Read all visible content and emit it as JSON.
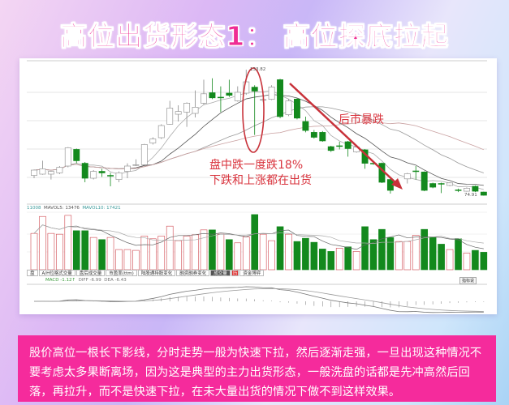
{
  "title": "高位出货形态1： 高位探底拉起",
  "annotations": {
    "high_label": "133.82",
    "low_label": "74.91",
    "note_line1": "盘中跌一度跌18%",
    "note_line2": "下跌和上涨都在出货",
    "crash_label": "后市暴跌"
  },
  "volume_legend": {
    "vol": "11008",
    "mavol5": "MAVOL5: 13476",
    "mavol10": "MAVOL10: 17421"
  },
  "tabs": [
    "盘",
    "A/H位格式交量",
    "盘后成交量",
    "市盈率(ttm)",
    "陆股通持股变化",
    "融资融券变化",
    "成交量",
    "历",
    "资金博弈"
  ],
  "active_tab": "成交量",
  "macd_legend": {
    "macd": "MACD -1.12↑",
    "diff": "DIFF -6.99",
    "dea": "DEA -6.43"
  },
  "indicator_button": "指标说",
  "description": "股价高位一根长下影线，分时走势一般为快速下拉，然后逐渐走强，一旦出现这种情况不要考虑太多果断离场，因为这是典型的主力出货形态，一般洗盘的话都是先冲高然后回落，再拉升，而不是快速下拉，在未大量出货的情况下做不到这样效果。",
  "colors": {
    "up": "#d0484f",
    "down": "#13891d",
    "title": "#ef2c93",
    "annotation": "#d9343e",
    "box": "#f52b9c"
  },
  "chart_data": {
    "type": "candlestick",
    "price_marks": {
      "high": 133.82,
      "low": 74.91
    },
    "candles": [
      [
        84.2,
        87.0,
        82.9,
        86.7
      ],
      [
        84.8,
        91.1,
        84.5,
        87.3
      ],
      [
        84.8,
        86.4,
        82.3,
        86.1
      ],
      [
        85.4,
        88.6,
        84.8,
        88.0
      ],
      [
        88.6,
        97.5,
        88.0,
        97.2
      ],
      [
        96.4,
        96.8,
        89.9,
        91.1
      ],
      [
        89.9,
        90.5,
        81.0,
        82.9
      ],
      [
        82.9,
        86.7,
        82.3,
        86.1
      ],
      [
        86.1,
        87.3,
        83.5,
        85.4
      ],
      [
        84.2,
        85.4,
        79.1,
        84.0
      ],
      [
        82.3,
        86.1,
        81.0,
        85.4
      ],
      [
        86.1,
        89.9,
        82.9,
        88.6
      ],
      [
        89.0,
        91.8,
        88.6,
        89.2
      ],
      [
        89.2,
        99.0,
        89.0,
        98.7
      ],
      [
        99.4,
        102.1,
        98.7,
        101.3
      ],
      [
        101.9,
        108.2,
        101.3,
        107.6
      ],
      [
        108.2,
        119.2,
        108.0,
        115.8
      ],
      [
        112.9,
        117.1,
        109.5,
        114.2
      ],
      [
        113.9,
        118.5,
        107.0,
        118.1
      ],
      [
        113.3,
        124.1,
        111.4,
        116.2
      ],
      [
        118.1,
        129.1,
        117.5,
        122.5
      ],
      [
        123.0,
        129.8,
        120.0,
        120.6
      ],
      [
        120.9,
        126.0,
        113.9,
        120.7
      ],
      [
        122.8,
        129.1,
        121.0,
        121.8
      ],
      [
        119.2,
        126.0,
        118.8,
        123.2
      ],
      [
        122.8,
        133.82,
        122.0,
        128.1
      ],
      [
        125.6,
        126.5,
        103.2,
        123.8
      ],
      [
        119.6,
        120.5,
        118.5,
        119.8
      ],
      [
        119.9,
        126.5,
        119.5,
        125.7
      ],
      [
        129.1,
        129.5,
        111.0,
        111.8
      ],
      [
        112.7,
        120.0,
        112.0,
        119.2
      ],
      [
        120.0,
        120.4,
        110.5,
        111.1
      ],
      [
        109.5,
        111.8,
        104.4,
        105.3
      ],
      [
        104.4,
        105.5,
        101.5,
        102.1
      ],
      [
        104.4,
        105.0,
        100.0,
        100.4
      ],
      [
        97.7,
        98.1,
        95.2,
        95.9
      ],
      [
        98.1,
        100.0,
        96.4,
        98.0
      ],
      [
        100.0,
        100.4,
        93.0,
        96.8
      ],
      [
        95.2,
        97.9,
        94.8,
        97.5
      ],
      [
        96.2,
        96.6,
        87.3,
        89.9
      ],
      [
        89.9,
        90.4,
        89.2,
        89.8
      ],
      [
        89.9,
        90.2,
        80.6,
        81.0
      ],
      [
        82.3,
        82.6,
        75.7,
        77.2
      ],
      null,
      [
        82.6,
        85.4,
        80.4,
        85.0
      ],
      [
        86.3,
        88.6,
        82.3,
        86.2
      ],
      [
        85.8,
        86.1,
        76.8,
        77.2
      ],
      [
        80.4,
        80.8,
        78.2,
        78.7
      ],
      [
        80.4,
        80.8,
        75.9,
        80.3
      ],
      [
        79.5,
        81.0,
        79.1,
        80.7
      ],
      [
        77.4,
        78.0,
        76.4,
        77.3
      ],
      [
        76.8,
        78.6,
        76.6,
        78.2
      ],
      [
        79.1,
        79.5,
        76.4,
        76.8
      ],
      [
        76.4,
        76.6,
        74.7,
        74.91
      ]
    ],
    "candle_fields": [
      "open",
      "high",
      "low",
      "close"
    ],
    "volume": [
      {
        "v": 13500,
        "up": true
      },
      {
        "v": 19800,
        "up": true
      },
      {
        "v": 13500,
        "up": true
      },
      {
        "v": 13200,
        "up": true
      },
      {
        "v": 20200,
        "up": true
      },
      {
        "v": 14500,
        "up": false
      },
      {
        "v": 14500,
        "up": false
      },
      {
        "v": 12000,
        "up": true
      },
      {
        "v": 11200,
        "up": false
      },
      {
        "v": 12000,
        "up": true
      },
      {
        "v": 7500,
        "up": true
      },
      {
        "v": 7500,
        "up": true
      },
      {
        "v": 7200,
        "up": true
      },
      {
        "v": 12500,
        "up": true
      },
      {
        "v": 11500,
        "up": true
      },
      {
        "v": 12500,
        "up": true
      },
      {
        "v": 16200,
        "up": true
      },
      {
        "v": 10800,
        "up": true
      },
      {
        "v": 12500,
        "up": true
      },
      {
        "v": 13000,
        "up": true
      },
      {
        "v": 14800,
        "up": true
      },
      {
        "v": 14800,
        "up": false
      },
      {
        "v": 13200,
        "up": true
      },
      {
        "v": 11200,
        "up": false
      },
      {
        "v": 10000,
        "up": true
      },
      {
        "v": 12200,
        "up": true
      },
      {
        "v": 20500,
        "up": false
      },
      {
        "v": 13200,
        "up": true
      },
      {
        "v": 10800,
        "up": true
      },
      {
        "v": 16000,
        "up": false
      },
      {
        "v": 13200,
        "up": true
      },
      {
        "v": 10500,
        "up": false
      },
      {
        "v": 11700,
        "up": false
      },
      {
        "v": 10200,
        "up": false
      },
      {
        "v": 7700,
        "up": false
      },
      {
        "v": 6800,
        "up": false
      },
      {
        "v": 8000,
        "up": true
      },
      {
        "v": 8500,
        "up": false
      },
      {
        "v": 6800,
        "up": true
      },
      {
        "v": 16000,
        "up": false
      },
      {
        "v": 11200,
        "up": false
      },
      {
        "v": 15000,
        "up": false
      },
      {
        "v": 12000,
        "up": false
      },
      {
        "v": 10500,
        "up": true
      },
      {
        "v": 10500,
        "up": true
      },
      {
        "v": 12800,
        "up": true
      },
      {
        "v": 15000,
        "up": false
      },
      {
        "v": 12200,
        "up": false
      },
      {
        "v": 9500,
        "up": false
      },
      {
        "v": 7500,
        "up": true
      },
      {
        "v": 11500,
        "up": false
      },
      {
        "v": 6200,
        "up": true
      },
      {
        "v": 7200,
        "up": false
      },
      {
        "v": 6500,
        "up": false
      }
    ],
    "grid": true
  }
}
